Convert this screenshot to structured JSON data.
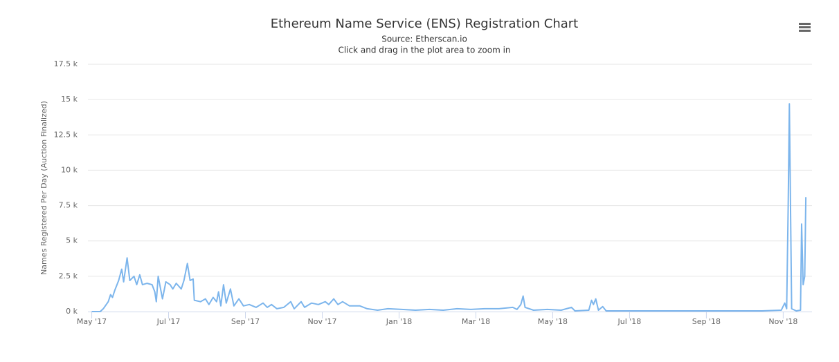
{
  "chart_data": {
    "type": "line",
    "title": "Ethereum Name Service (ENS) Registration Chart",
    "subtitle": "Source: Etherscan.io",
    "annotations": [
      "Click and drag in the plot area to zoom in"
    ],
    "y_label": "Names Registered Per Day (Auction Finalized)",
    "color": "#7cb5ec",
    "grid": true,
    "x": [
      0,
      0.22,
      0.3,
      0.43,
      0.49,
      0.54,
      0.6,
      0.7,
      0.78,
      0.83,
      0.92,
      0.99,
      1.1,
      1.17,
      1.25,
      1.32,
      1.44,
      1.57,
      1.64,
      1.68,
      1.73,
      1.84,
      1.93,
      2.04,
      2.11,
      2.2,
      2.33,
      2.4,
      2.49,
      2.56,
      2.64,
      2.67,
      2.83,
      2.96,
      3.05,
      3.16,
      3.25,
      3.3,
      3.36,
      3.43,
      3.5,
      3.61,
      3.7,
      3.83,
      3.95,
      4.1,
      4.28,
      4.46,
      4.57,
      4.68,
      4.82,
      5.0,
      5.18,
      5.27,
      5.45,
      5.54,
      5.72,
      5.9,
      6.08,
      6.17,
      6.3,
      6.41,
      6.53,
      6.71,
      6.98,
      7.17,
      7.44,
      7.71,
      8.07,
      8.43,
      8.79,
      9.15,
      9.51,
      9.87,
      10.23,
      10.6,
      10.96,
      11.07,
      11.17,
      11.23,
      11.28,
      11.5,
      11.86,
      12.22,
      12.49,
      12.58,
      12.94,
      13.01,
      13.06,
      13.12,
      13.19,
      13.3,
      13.39,
      13.84,
      14.75,
      15.65,
      16.55,
      17.45,
      17.95,
      18.04,
      18.09,
      18.13,
      18.16,
      18.22,
      18.34,
      18.45,
      18.48,
      18.52,
      18.56,
      18.59
    ],
    "values": [
      0,
      0,
      200,
      700,
      1200,
      1000,
      1500,
      2200,
      3000,
      2100,
      3800,
      2200,
      2500,
      1900,
      2600,
      1900,
      2000,
      1900,
      1400,
      700,
      2500,
      900,
      2100,
      1900,
      1600,
      2000,
      1600,
      2200,
      3400,
      2200,
      2300,
      800,
      700,
      900,
      500,
      1000,
      700,
      1400,
      400,
      1900,
      600,
      1600,
      400,
      900,
      400,
      500,
      300,
      600,
      300,
      500,
      200,
      300,
      700,
      200,
      700,
      300,
      600,
      500,
      700,
      500,
      900,
      500,
      700,
      400,
      400,
      200,
      100,
      200,
      150,
      100,
      150,
      100,
      200,
      150,
      200,
      200,
      300,
      150,
      500,
      1100,
      300,
      100,
      150,
      100,
      300,
      50,
      100,
      800,
      500,
      900,
      100,
      350,
      50,
      50,
      50,
      50,
      50,
      50,
      100,
      600,
      200,
      7500,
      14700,
      200,
      50,
      100,
      6200,
      1900,
      2500,
      8100
    ],
    "xlim": [
      -0.1,
      18.75
    ],
    "xticks": [
      {
        "value": 0,
        "label": "May '17"
      },
      {
        "value": 2,
        "label": "Jul '17"
      },
      {
        "value": 4,
        "label": "Sep '17"
      },
      {
        "value": 6,
        "label": "Nov '17"
      },
      {
        "value": 8,
        "label": "Jan '18"
      },
      {
        "value": 10,
        "label": "Mar '18"
      },
      {
        "value": 12,
        "label": "May '18"
      },
      {
        "value": 14,
        "label": "Jul '18"
      },
      {
        "value": 16,
        "label": "Sep '18"
      },
      {
        "value": 18,
        "label": "Nov '18"
      }
    ],
    "ylim": [
      0,
      17500
    ],
    "yticks": [
      {
        "value": 0,
        "label": "0 k"
      },
      {
        "value": 2500,
        "label": "2.5 k"
      },
      {
        "value": 5000,
        "label": "5 k"
      },
      {
        "value": 7500,
        "label": "7.5 k"
      },
      {
        "value": 10000,
        "label": "10 k"
      },
      {
        "value": 12500,
        "label": "12.5 k"
      },
      {
        "value": 15000,
        "label": "15 k"
      },
      {
        "value": 17500,
        "label": "17.5 k"
      }
    ]
  }
}
